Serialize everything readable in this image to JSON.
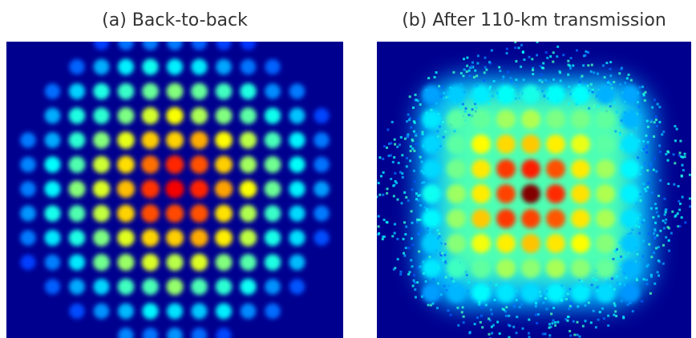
{
  "panels": [
    {
      "title": "(a) Back-to-back"
    },
    {
      "title": "(b) After 110-km transmission"
    }
  ]
}
